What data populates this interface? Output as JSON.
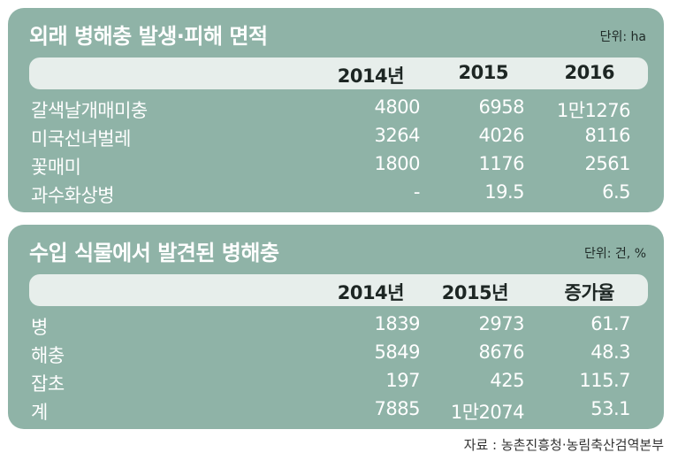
{
  "chart_data": [
    {
      "type": "table",
      "title": "외래 병해충 발생·피해 면적",
      "unit": "단위: ha",
      "columns": [
        "2014년",
        "2015",
        "2016"
      ],
      "rows": [
        {
          "label": "갈색날개매미충",
          "values": [
            "4800",
            "6958",
            "1만1276"
          ]
        },
        {
          "label": "미국선녀벌레",
          "values": [
            "3264",
            "4026",
            "8116"
          ]
        },
        {
          "label": "꽃매미",
          "values": [
            "1800",
            "1176",
            "2561"
          ]
        },
        {
          "label": "과수화상병",
          "values": [
            "-",
            "19.5",
            "6.5"
          ]
        }
      ]
    },
    {
      "type": "table",
      "title": "수입 식물에서 발견된 병해충",
      "unit": "단위: 건, %",
      "columns": [
        "2014년",
        "2015년",
        "증가율"
      ],
      "rows": [
        {
          "label": "병",
          "values": [
            "1839",
            "2973",
            "61.7"
          ]
        },
        {
          "label": "해충",
          "values": [
            "5849",
            "8676",
            "48.3"
          ]
        },
        {
          "label": "잡초",
          "values": [
            "197",
            "425",
            "115.7"
          ]
        },
        {
          "label": "계",
          "values": [
            "7885",
            "1만2074",
            "53.1"
          ]
        }
      ]
    }
  ],
  "source": "자료 : 농촌진흥청·농림축산검역본부",
  "colors": {
    "panel": "#8fb3a7",
    "header_bar": "#e7eeeb",
    "text_light": "#ffffff",
    "text_dark": "#1d2623"
  }
}
